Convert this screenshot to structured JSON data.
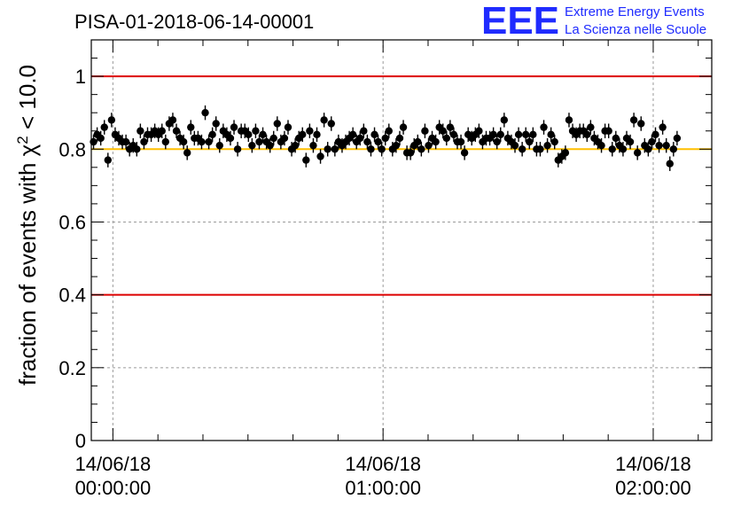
{
  "chart_data": {
    "type": "scatter",
    "title": "PISA-01-2018-06-14-00001",
    "ylabel": "fraction of events with χ² < 10.0",
    "ylabel_parts": {
      "prefix": "fraction of events with ",
      "chi": "χ",
      "sup": "2",
      "suffix": " < 10.0"
    },
    "logo": {
      "mark": "EEE",
      "line1": "Extreme Energy Events",
      "line2": "La Scienza nelle Scuole"
    },
    "x_time_range_minutes": [
      -4.8,
      133
    ],
    "ylim": [
      0,
      1.1
    ],
    "y_ticks": [
      {
        "value": 0,
        "label": "0"
      },
      {
        "value": 0.2,
        "label": "0.2"
      },
      {
        "value": 0.4,
        "label": "0.4"
      },
      {
        "value": 0.6,
        "label": "0.6"
      },
      {
        "value": 0.8,
        "label": "0.8"
      },
      {
        "value": 1.0,
        "label": "1"
      }
    ],
    "x_ticks": [
      {
        "minutes": 0,
        "date": "14/06/18",
        "time": "00:00:00"
      },
      {
        "minutes": 60,
        "date": "14/06/18",
        "time": "01:00:00"
      },
      {
        "minutes": 120,
        "date": "14/06/18",
        "time": "02:00:00"
      }
    ],
    "reference_lines": [
      {
        "y": 1.0,
        "color": "#dd0000"
      },
      {
        "y": 0.4,
        "color": "#dd0000"
      },
      {
        "y": 0.8,
        "color": "#ffbf00"
      }
    ],
    "grid": true,
    "error": 0.02,
    "series": [
      {
        "x_start_minutes": -4.3,
        "x_step_minutes": 0.8,
        "values": [
          0.82,
          0.84,
          0.83,
          0.86,
          0.77,
          0.88,
          0.84,
          0.83,
          0.82,
          0.82,
          0.8,
          0.81,
          0.8,
          0.85,
          0.82,
          0.84,
          0.84,
          0.85,
          0.84,
          0.85,
          0.82,
          0.87,
          0.88,
          0.85,
          0.83,
          0.82,
          0.79,
          0.86,
          0.83,
          0.83,
          0.82,
          0.9,
          0.82,
          0.84,
          0.87,
          0.81,
          0.85,
          0.84,
          0.83,
          0.86,
          0.8,
          0.85,
          0.85,
          0.84,
          0.81,
          0.85,
          0.82,
          0.84,
          0.82,
          0.81,
          0.83,
          0.87,
          0.82,
          0.83,
          0.86,
          0.8,
          0.81,
          0.83,
          0.84,
          0.77,
          0.85,
          0.81,
          0.84,
          0.78,
          0.88,
          0.8,
          0.87,
          0.8,
          0.82,
          0.81,
          0.82,
          0.83,
          0.84,
          0.82,
          0.83,
          0.85,
          0.82,
          0.8,
          0.84,
          0.82,
          0.8,
          0.83,
          0.85,
          0.8,
          0.81,
          0.83,
          0.86,
          0.79,
          0.79,
          0.81,
          0.82,
          0.8,
          0.85,
          0.81,
          0.83,
          0.82,
          0.86,
          0.85,
          0.83,
          0.86,
          0.84,
          0.82,
          0.82,
          0.79,
          0.84,
          0.83,
          0.84,
          0.85,
          0.82,
          0.83,
          0.83,
          0.84,
          0.82,
          0.84,
          0.88,
          0.83,
          0.82,
          0.81,
          0.84,
          0.8,
          0.84,
          0.82,
          0.84,
          0.8,
          0.8,
          0.86,
          0.81,
          0.84,
          0.82,
          0.77,
          0.78,
          0.79,
          0.88,
          0.85,
          0.84,
          0.85,
          0.85,
          0.84,
          0.86,
          0.83,
          0.82,
          0.81,
          0.85,
          0.85,
          0.8,
          0.83,
          0.81,
          0.8,
          0.83,
          0.82,
          0.88,
          0.79,
          0.87,
          0.81,
          0.8,
          0.82,
          0.84,
          0.81,
          0.86,
          0.81,
          0.76,
          0.8,
          0.83
        ]
      }
    ]
  }
}
